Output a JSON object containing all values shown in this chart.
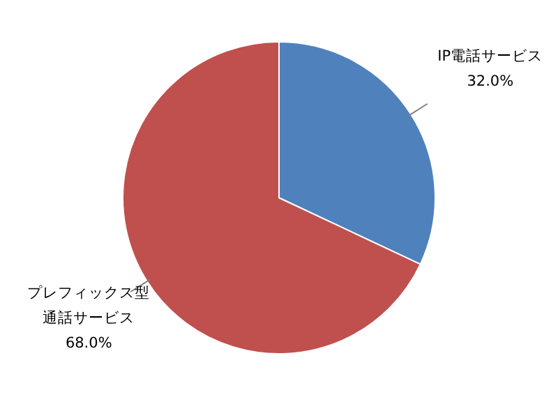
{
  "chart_data": {
    "type": "pie",
    "categories": [
      "IP電話サービス",
      "プレフィックス型通話サービス"
    ],
    "values": [
      32.0,
      68.0
    ],
    "colors": [
      "#4f81bd",
      "#c0504d"
    ],
    "value_labels": [
      "32.0%",
      "68.0%"
    ]
  }
}
